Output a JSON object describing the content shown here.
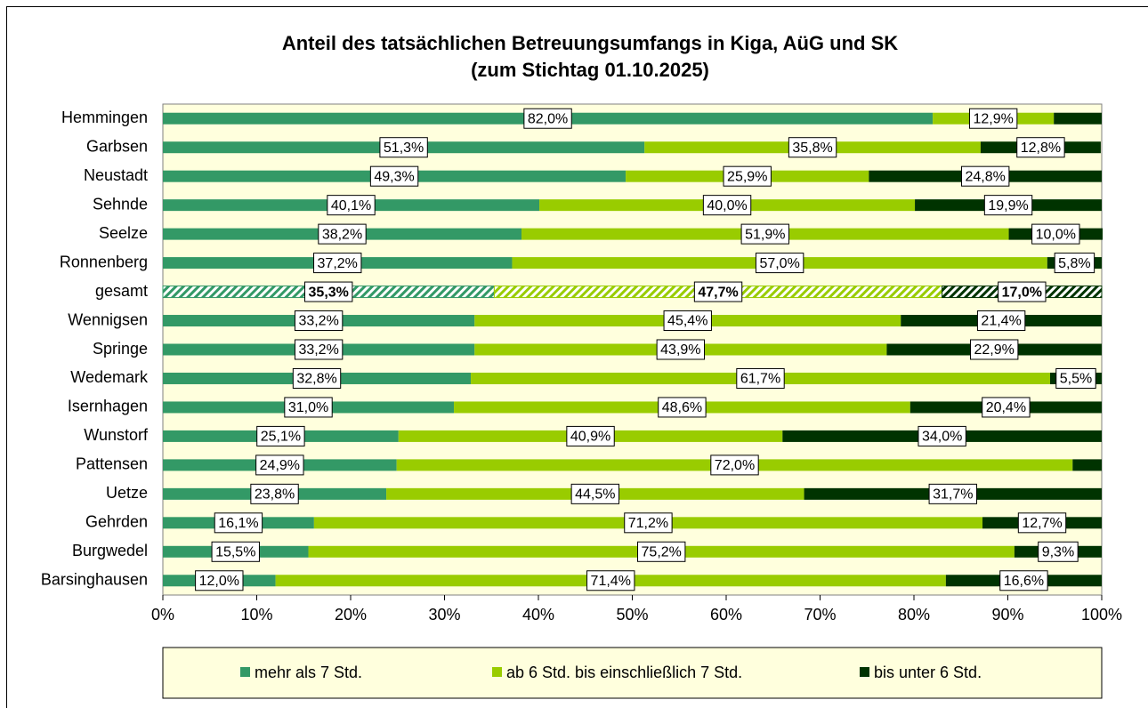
{
  "chart_data": {
    "type": "stacked_barh",
    "title": "Anteil des tatsächlichen Betreuungsumfangs in Kiga, AüG und SK",
    "subtitle": "(zum Stichtag 01.10.2025)",
    "categories": [
      "Hemmingen",
      "Garbsen",
      "Neustadt",
      "Sehnde",
      "Seelze",
      "Ronnenberg",
      "gesamt",
      "Wennigsen",
      "Springe",
      "Wedemark",
      "Isernhagen",
      "Wunstorf",
      "Pattensen",
      "Uetze",
      "Gehrden",
      "Burgwedel",
      "Barsinghausen"
    ],
    "hatched_categories": [
      6
    ],
    "series": [
      {
        "name": "mehr als 7 Std.",
        "color": "#339966",
        "values": [
          82.0,
          51.3,
          49.3,
          40.1,
          38.2,
          37.2,
          35.3,
          33.2,
          33.2,
          32.8,
          31.0,
          25.1,
          24.9,
          23.8,
          16.1,
          15.5,
          12.0
        ],
        "value_labels": [
          "82,0%",
          "51,3%",
          "49,3%",
          "40,1%",
          "38,2%",
          "37,2%",
          "35,3%",
          "33,2%",
          "33,2%",
          "32,8%",
          "31,0%",
          "25,1%",
          "24,9%",
          "23,8%",
          "16,1%",
          "15,5%",
          "12,0%"
        ]
      },
      {
        "name": "ab 6 Std. bis einschließlich 7 Std.",
        "color": "#99cc00",
        "values": [
          12.9,
          35.8,
          25.9,
          40.0,
          51.9,
          57.0,
          47.7,
          45.4,
          43.9,
          61.7,
          48.6,
          40.9,
          72.0,
          44.5,
          71.2,
          75.2,
          71.4
        ],
        "value_labels": [
          "12,9%",
          "35,8%",
          "25,9%",
          "40,0%",
          "51,9%",
          "57,0%",
          "47,7%",
          "45,4%",
          "43,9%",
          "61,7%",
          "48,6%",
          "40,9%",
          "72,0%",
          "44,5%",
          "71,2%",
          "75,2%",
          "71,4%"
        ]
      },
      {
        "name": "bis unter 6 Std.",
        "color": "#003300",
        "values": [
          5.1,
          12.8,
          24.8,
          19.9,
          10.0,
          5.8,
          17.0,
          21.4,
          22.9,
          5.5,
          20.4,
          34.0,
          3.1,
          31.7,
          12.7,
          9.3,
          16.6
        ],
        "value_labels": [
          null,
          "12,8%",
          "24,8%",
          "19,9%",
          "10,0%",
          "5,8%",
          "17,0%",
          "21,4%",
          "22,9%",
          "5,5%",
          "20,4%",
          "34,0%",
          null,
          "31,7%",
          "12,7%",
          "9,3%",
          "16,6%"
        ]
      }
    ],
    "xlim": [
      0,
      100
    ],
    "xticks": [
      {
        "value": 0,
        "label": "0%"
      },
      {
        "value": 10,
        "label": "10%"
      },
      {
        "value": 20,
        "label": "20%"
      },
      {
        "value": 30,
        "label": "30%"
      },
      {
        "value": 40,
        "label": "40%"
      },
      {
        "value": 50,
        "label": "50%"
      },
      {
        "value": 60,
        "label": "60%"
      },
      {
        "value": 70,
        "label": "70%"
      },
      {
        "value": 80,
        "label": "80%"
      },
      {
        "value": 90,
        "label": "90%"
      },
      {
        "value": 100,
        "label": "100%"
      }
    ],
    "legend": "bottom",
    "background": "#ffffdd"
  }
}
